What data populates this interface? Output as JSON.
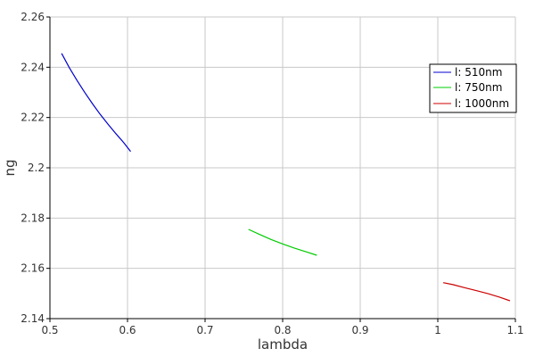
{
  "chart_data": {
    "type": "line",
    "title": "",
    "xlabel": "lambda",
    "ylabel": "ng",
    "xlim": [
      0.5,
      1.1
    ],
    "ylim": [
      2.14,
      2.26
    ],
    "xticks": [
      0.5,
      0.6,
      0.7,
      0.8,
      0.9,
      1,
      1.1
    ],
    "xtick_labels": [
      "0.5",
      "0.6",
      "0.7",
      "0.8",
      "0.9",
      "1",
      "1.1"
    ],
    "yticks": [
      2.14,
      2.16,
      2.18,
      2.2,
      2.22,
      2.24,
      2.26
    ],
    "ytick_labels": [
      "2.14",
      "2.16",
      "2.18",
      "2.2",
      "2.22",
      "2.24",
      "2.26"
    ],
    "grid": true,
    "legend_position": "top-right",
    "series": [
      {
        "name": "l: 510nm",
        "color": "#0000cc",
        "x": [
          0.515,
          0.525,
          0.535,
          0.545,
          0.555,
          0.565,
          0.575,
          0.585,
          0.595,
          0.604
        ],
        "y": [
          2.2455,
          2.2398,
          2.2347,
          2.2299,
          2.2254,
          2.2212,
          2.2173,
          2.2136,
          2.2101,
          2.2065
        ]
      },
      {
        "name": "l: 750nm",
        "color": "#00cc00",
        "x": [
          0.756,
          0.77,
          0.785,
          0.8,
          0.815,
          0.83,
          0.844
        ],
        "y": [
          2.1755,
          2.1735,
          2.1715,
          2.1697,
          2.1681,
          2.1666,
          2.1652
        ]
      },
      {
        "name": "l: 1000nm",
        "color": "#cc0000",
        "x": [
          1.007,
          1.02,
          1.035,
          1.05,
          1.065,
          1.08,
          1.093
        ],
        "y": [
          2.1543,
          2.1535,
          2.1523,
          2.1511,
          2.1499,
          2.1485,
          2.1471
        ]
      }
    ]
  }
}
